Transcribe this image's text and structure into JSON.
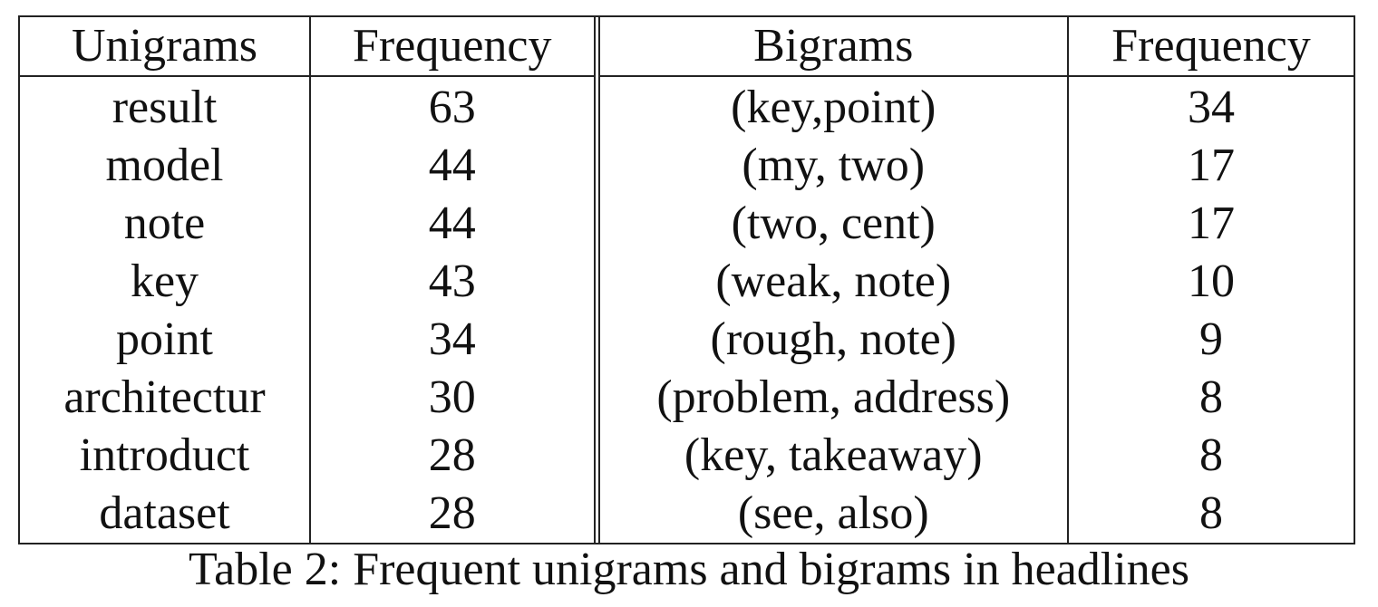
{
  "table": {
    "headers": [
      "Unigrams",
      "Frequency",
      "Bigrams",
      "Frequency"
    ],
    "rows": [
      [
        "result",
        "63",
        "(key,point)",
        "34"
      ],
      [
        "model",
        "44",
        "(my, two)",
        "17"
      ],
      [
        "note",
        "44",
        "(two, cent)",
        "17"
      ],
      [
        "key",
        "43",
        "(weak, note)",
        "10"
      ],
      [
        "point",
        "34",
        "(rough, note)",
        "9"
      ],
      [
        "architectur",
        "30",
        "(problem, address)",
        "8"
      ],
      [
        "introduct",
        "28",
        "(key, takeaway)",
        "8"
      ],
      [
        "dataset",
        "28",
        "(see, also)",
        "8"
      ]
    ]
  },
  "caption": "Table 2: Frequent unigrams and bigrams in headlines"
}
